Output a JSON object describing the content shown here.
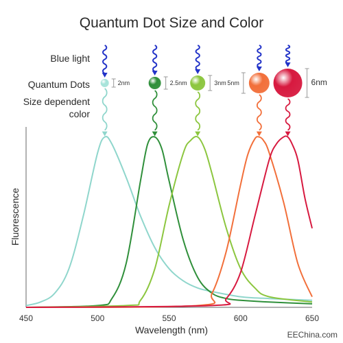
{
  "chart_data": {
    "type": "line",
    "title": "Quantum Dot Size and Color",
    "xlabel": "Wavelength (nm)",
    "ylabel": "Fluorescence",
    "xlim": [
      450,
      650
    ],
    "ylim": [
      0,
      1
    ],
    "x_ticks": [
      "450",
      "500",
      "550",
      "600",
      "650"
    ],
    "grid": false,
    "series": [
      {
        "color": "#8fd6cc",
        "x": [
          450,
          460,
          470,
          480,
          490,
          500,
          505,
          510,
          520,
          530,
          540,
          550,
          560,
          570,
          580,
          600,
          620,
          650
        ],
        "y": [
          0.01,
          0.03,
          0.08,
          0.22,
          0.52,
          0.88,
          0.97,
          0.93,
          0.74,
          0.52,
          0.34,
          0.22,
          0.15,
          0.11,
          0.09,
          0.06,
          0.05,
          0.04
        ]
      },
      {
        "color": "#2f8f3a",
        "x": [
          450,
          500,
          510,
          520,
          530,
          535,
          540,
          545,
          550,
          560,
          570,
          580,
          590,
          600,
          620,
          650
        ],
        "y": [
          0.0,
          0.01,
          0.05,
          0.25,
          0.72,
          0.93,
          0.97,
          0.9,
          0.72,
          0.38,
          0.17,
          0.08,
          0.05,
          0.04,
          0.03,
          0.02
        ]
      },
      {
        "color": "#8cc63f",
        "x": [
          450,
          520,
          530,
          540,
          550,
          560,
          565,
          570,
          575,
          580,
          590,
          600,
          610,
          620,
          650
        ],
        "y": [
          0.0,
          0.01,
          0.04,
          0.22,
          0.58,
          0.88,
          0.95,
          0.97,
          0.9,
          0.76,
          0.45,
          0.22,
          0.11,
          0.06,
          0.03
        ]
      },
      {
        "color": "#f26f3a",
        "x": [
          450,
          570,
          580,
          590,
          600,
          605,
          610,
          613,
          616,
          620,
          630,
          640,
          650
        ],
        "y": [
          0.0,
          0.01,
          0.08,
          0.32,
          0.7,
          0.87,
          0.96,
          0.97,
          0.95,
          0.88,
          0.6,
          0.25,
          0.06
        ]
      },
      {
        "color": "#d7193f",
        "x": [
          450,
          580,
          590,
          600,
          610,
          620,
          625,
          630,
          633,
          636,
          640,
          645,
          650
        ],
        "y": [
          0.0,
          0.01,
          0.05,
          0.2,
          0.52,
          0.84,
          0.93,
          0.97,
          0.97,
          0.93,
          0.84,
          0.62,
          0.45
        ]
      }
    ]
  },
  "labels": {
    "blue_light": "Blue light",
    "quantum_dots": "Quantum Dots",
    "size_dependent": "Size dependent",
    "color": "color"
  },
  "dots": [
    {
      "size": "2nm",
      "color": "#a6e3da",
      "emission_color": "#8fd6cc",
      "wavelength": 505
    },
    {
      "size": "2.5nm",
      "color": "#2f8f3a",
      "emission_color": "#2f8f3a",
      "wavelength": 540
    },
    {
      "size": "3nm",
      "color": "#8cc63f",
      "emission_color": "#8cc63f",
      "wavelength": 570
    },
    {
      "size": "5nm",
      "color": "#f26f3a",
      "emission_color": "#f26f3a",
      "wavelength": 613
    },
    {
      "size": "6nm",
      "color": "#d7193f",
      "emission_color": "#d7193f",
      "wavelength": 633
    }
  ],
  "colors": {
    "blue_light": "#2233c8",
    "axis": "#666666"
  },
  "watermark": "EEChina.com"
}
